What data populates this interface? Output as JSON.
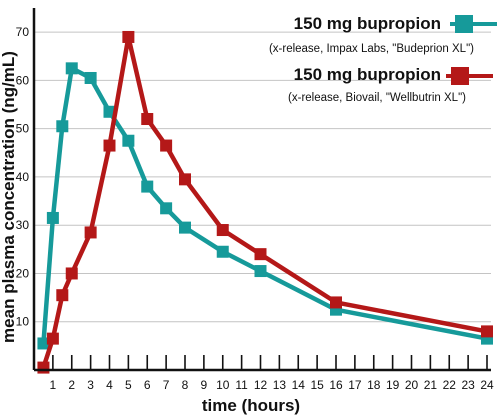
{
  "chart_data": {
    "type": "line",
    "title": "",
    "xlabel": "time (hours)",
    "ylabel": "mean plasma concentration (ng/mL)",
    "xlim": [
      0,
      24
    ],
    "ylim": [
      0,
      75
    ],
    "x_ticks": [
      0,
      1,
      2,
      3,
      4,
      5,
      6,
      7,
      8,
      9,
      10,
      11,
      12,
      13,
      14,
      15,
      16,
      17,
      18,
      19,
      20,
      21,
      22,
      23,
      24
    ],
    "x_tick_labels": [
      "",
      "1",
      "2",
      "3",
      "4",
      "5",
      "6",
      "7",
      "8",
      "9",
      "10",
      "11",
      "12",
      "13",
      "14",
      "15",
      "16",
      "17",
      "18",
      "19",
      "20",
      "21",
      "22",
      "23",
      "24"
    ],
    "y_ticks": [
      10,
      20,
      30,
      40,
      50,
      60,
      70
    ],
    "y_tick_labels": [
      "10",
      "20",
      "30",
      "40",
      "50",
      "60",
      "70"
    ],
    "grid": "horizontal",
    "legend_position": "top-right",
    "series": [
      {
        "name": "150 mg bupropion",
        "note": "(x-release, Impax Labs, \"Budeprion XL\")",
        "color": "#169a9a",
        "marker": "square",
        "x": [
          0.5,
          1,
          1.5,
          2,
          3,
          4,
          5,
          6,
          7,
          8,
          10,
          12,
          16,
          24
        ],
        "y": [
          5.5,
          31.5,
          50.5,
          62.5,
          60.5,
          53.5,
          47.5,
          38,
          33.5,
          29.5,
          24.5,
          20.5,
          12.5,
          6.5
        ]
      },
      {
        "name": "150 mg bupropion",
        "note": "(x-release, Biovail, \"Wellbutrin XL\")",
        "color": "#b41818",
        "marker": "square",
        "x": [
          0.5,
          1,
          1.5,
          2,
          3,
          4,
          5,
          6,
          7,
          8,
          10,
          12,
          16,
          24
        ],
        "y": [
          0.5,
          6.5,
          15.5,
          20,
          28.5,
          46.5,
          69,
          52,
          46.5,
          39.5,
          29,
          24,
          14,
          8
        ]
      }
    ]
  }
}
